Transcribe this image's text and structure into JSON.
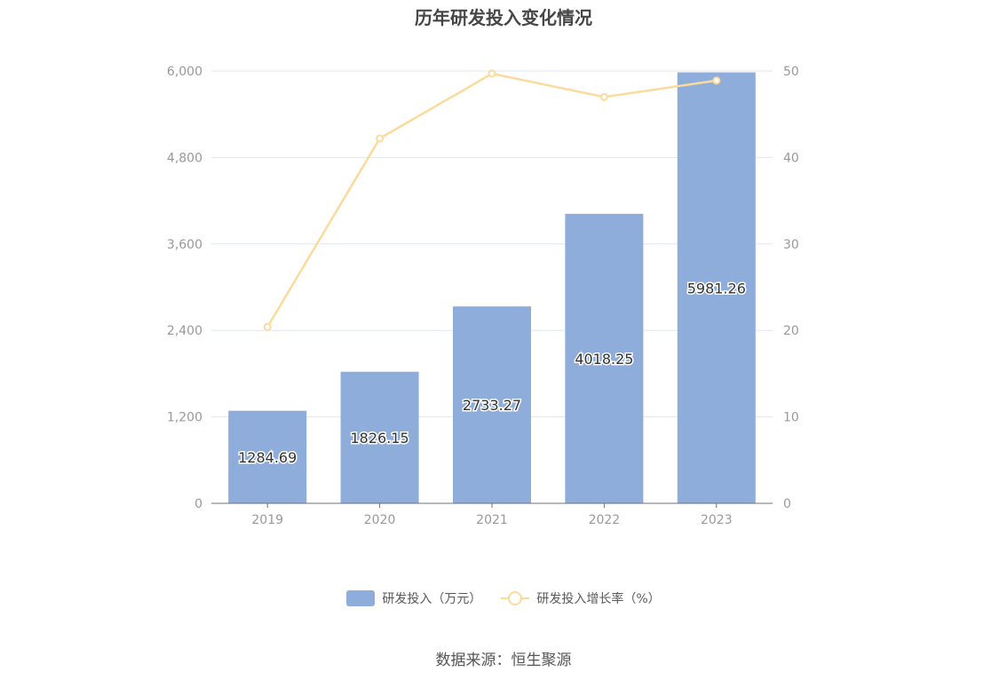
{
  "title": "历年研发投入变化情况",
  "source": "数据来源：恒生聚源",
  "colors": {
    "bar": "#8eadda",
    "line": "#fbdb9c",
    "grid": "#e0e6f1",
    "axis": "#6e7079",
    "tick": "#999999"
  },
  "chart_data": {
    "type": "bar",
    "categories": [
      "2019",
      "2020",
      "2021",
      "2022",
      "2023"
    ],
    "series": [
      {
        "name": "研发投入（万元）",
        "type": "bar",
        "axis": "left",
        "values": [
          1284.69,
          1826.15,
          2733.27,
          4018.25,
          5981.26
        ],
        "labels": [
          "1284.69",
          "1826.15",
          "2733.27",
          "4018.25",
          "5981.26"
        ]
      },
      {
        "name": "研发投入增长率（%）",
        "type": "line",
        "axis": "right",
        "values": [
          20.4,
          42.2,
          49.7,
          47.0,
          48.9
        ]
      }
    ],
    "y_left": {
      "min": 0,
      "max": 6000,
      "ticks": [
        0,
        1200,
        2400,
        3600,
        4800,
        6000
      ],
      "tick_labels": [
        "0",
        "1,200",
        "2,400",
        "3,600",
        "4,800",
        "6,000"
      ]
    },
    "y_right": {
      "min": 0,
      "max": 50,
      "ticks": [
        0,
        10,
        20,
        30,
        40,
        50
      ],
      "tick_labels": [
        "0",
        "10",
        "20",
        "30",
        "40",
        "50"
      ]
    },
    "grid": true,
    "legend_position": "bottom"
  }
}
